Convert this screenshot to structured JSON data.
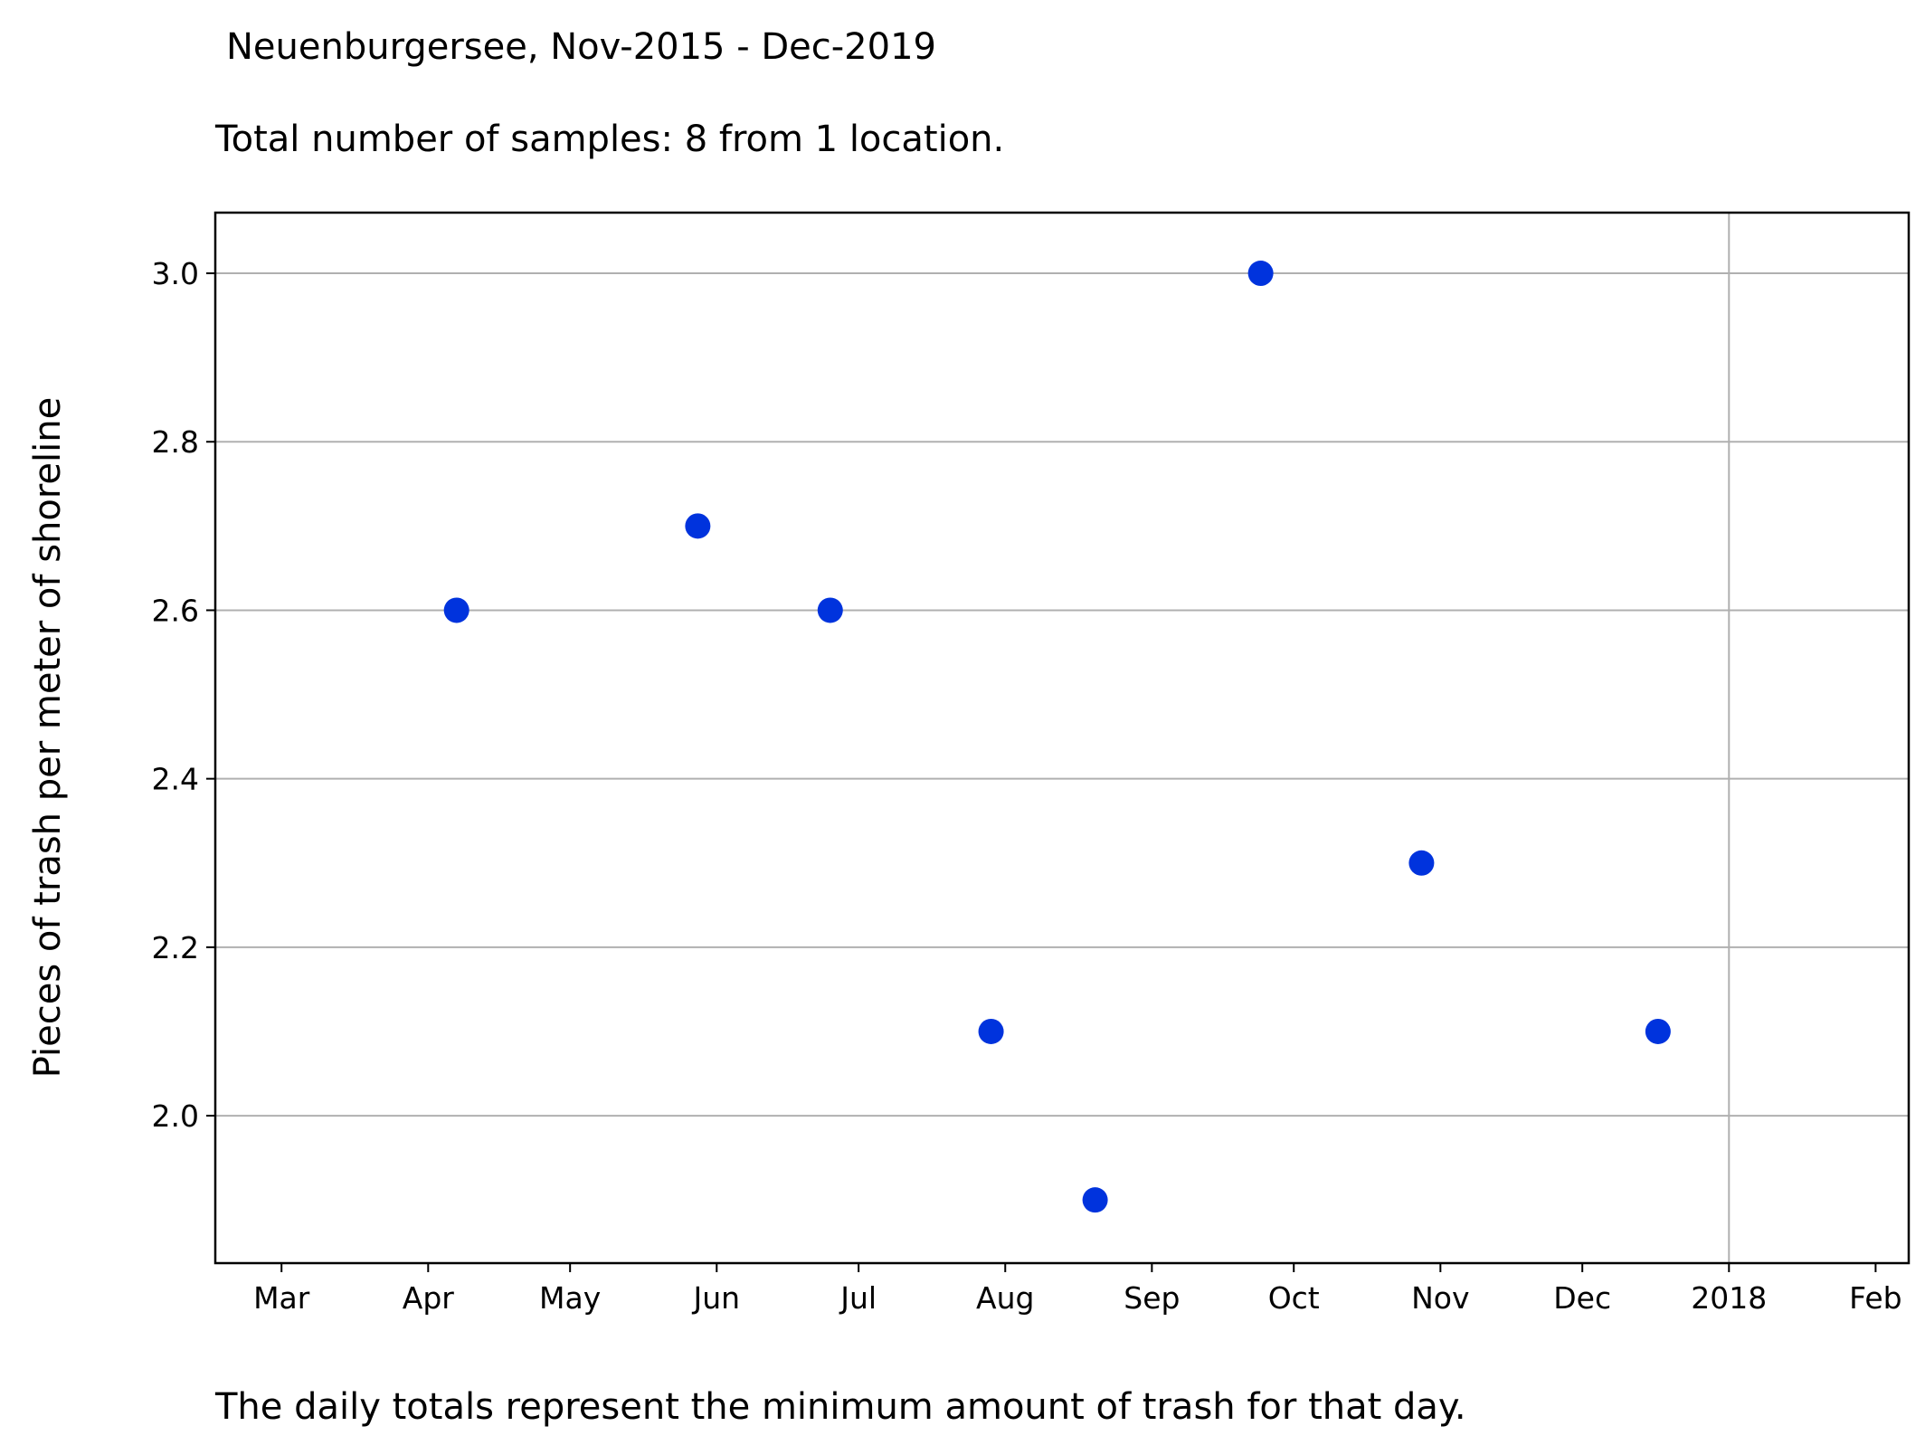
{
  "chart_data": {
    "type": "scatter",
    "title": "Neuenburgersee, Nov-2015 - Dec-2019",
    "subtitle": "Total number of samples: 8 from 1 location.",
    "xlabel": "",
    "ylabel": "Pieces of trash per meter of shoreline",
    "caption": "The daily totals represent the minimum amount of trash for that day.",
    "xlim": [
      "2017-02-15",
      "2018-02-08"
    ],
    "ylim": [
      1.825,
      3.072
    ],
    "grid": true,
    "marker_color": "#0033dd",
    "x_ticks": [
      {
        "date": "2017-03-01",
        "label": "Mar"
      },
      {
        "date": "2017-04-01",
        "label": "Apr"
      },
      {
        "date": "2017-05-01",
        "label": "May"
      },
      {
        "date": "2017-06-01",
        "label": "Jun"
      },
      {
        "date": "2017-07-01",
        "label": "Jul"
      },
      {
        "date": "2017-08-01",
        "label": "Aug"
      },
      {
        "date": "2017-09-01",
        "label": "Sep"
      },
      {
        "date": "2017-10-01",
        "label": "Oct"
      },
      {
        "date": "2017-11-01",
        "label": "Nov"
      },
      {
        "date": "2017-12-01",
        "label": "Dec"
      },
      {
        "date": "2018-01-01",
        "label": "2018"
      },
      {
        "date": "2018-02-01",
        "label": "Feb"
      }
    ],
    "y_ticks": [
      {
        "value": 2.0,
        "label": "2.0"
      },
      {
        "value": 2.2,
        "label": "2.2"
      },
      {
        "value": 2.4,
        "label": "2.4"
      },
      {
        "value": 2.6,
        "label": "2.6"
      },
      {
        "value": 2.8,
        "label": "2.8"
      },
      {
        "value": 3.0,
        "label": "3.0"
      }
    ],
    "points": [
      {
        "x": "2017-04-07",
        "y": 2.6
      },
      {
        "x": "2017-05-28",
        "y": 2.7
      },
      {
        "x": "2017-06-25",
        "y": 2.6
      },
      {
        "x": "2017-07-29",
        "y": 2.1
      },
      {
        "x": "2017-08-20",
        "y": 1.9
      },
      {
        "x": "2017-09-24",
        "y": 3.0
      },
      {
        "x": "2017-10-28",
        "y": 2.3
      },
      {
        "x": "2017-12-17",
        "y": 2.1
      }
    ]
  }
}
